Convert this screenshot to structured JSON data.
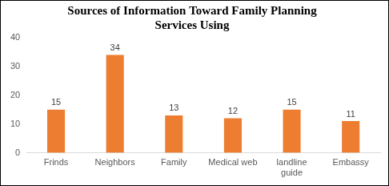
{
  "chart_data": {
    "type": "bar",
    "title": "Sources of Information Toward Family Planning Services Using",
    "categories": [
      "Frinds",
      "Neighbors",
      "Family",
      "Medical web",
      "landline guide",
      "Embassy"
    ],
    "values": [
      15,
      34,
      13,
      12,
      15,
      11
    ],
    "color": "#ed7d31",
    "ylim": [
      0,
      40
    ],
    "yticks": [
      0,
      10,
      20,
      30,
      40
    ],
    "grid": false,
    "data_labels": true
  }
}
